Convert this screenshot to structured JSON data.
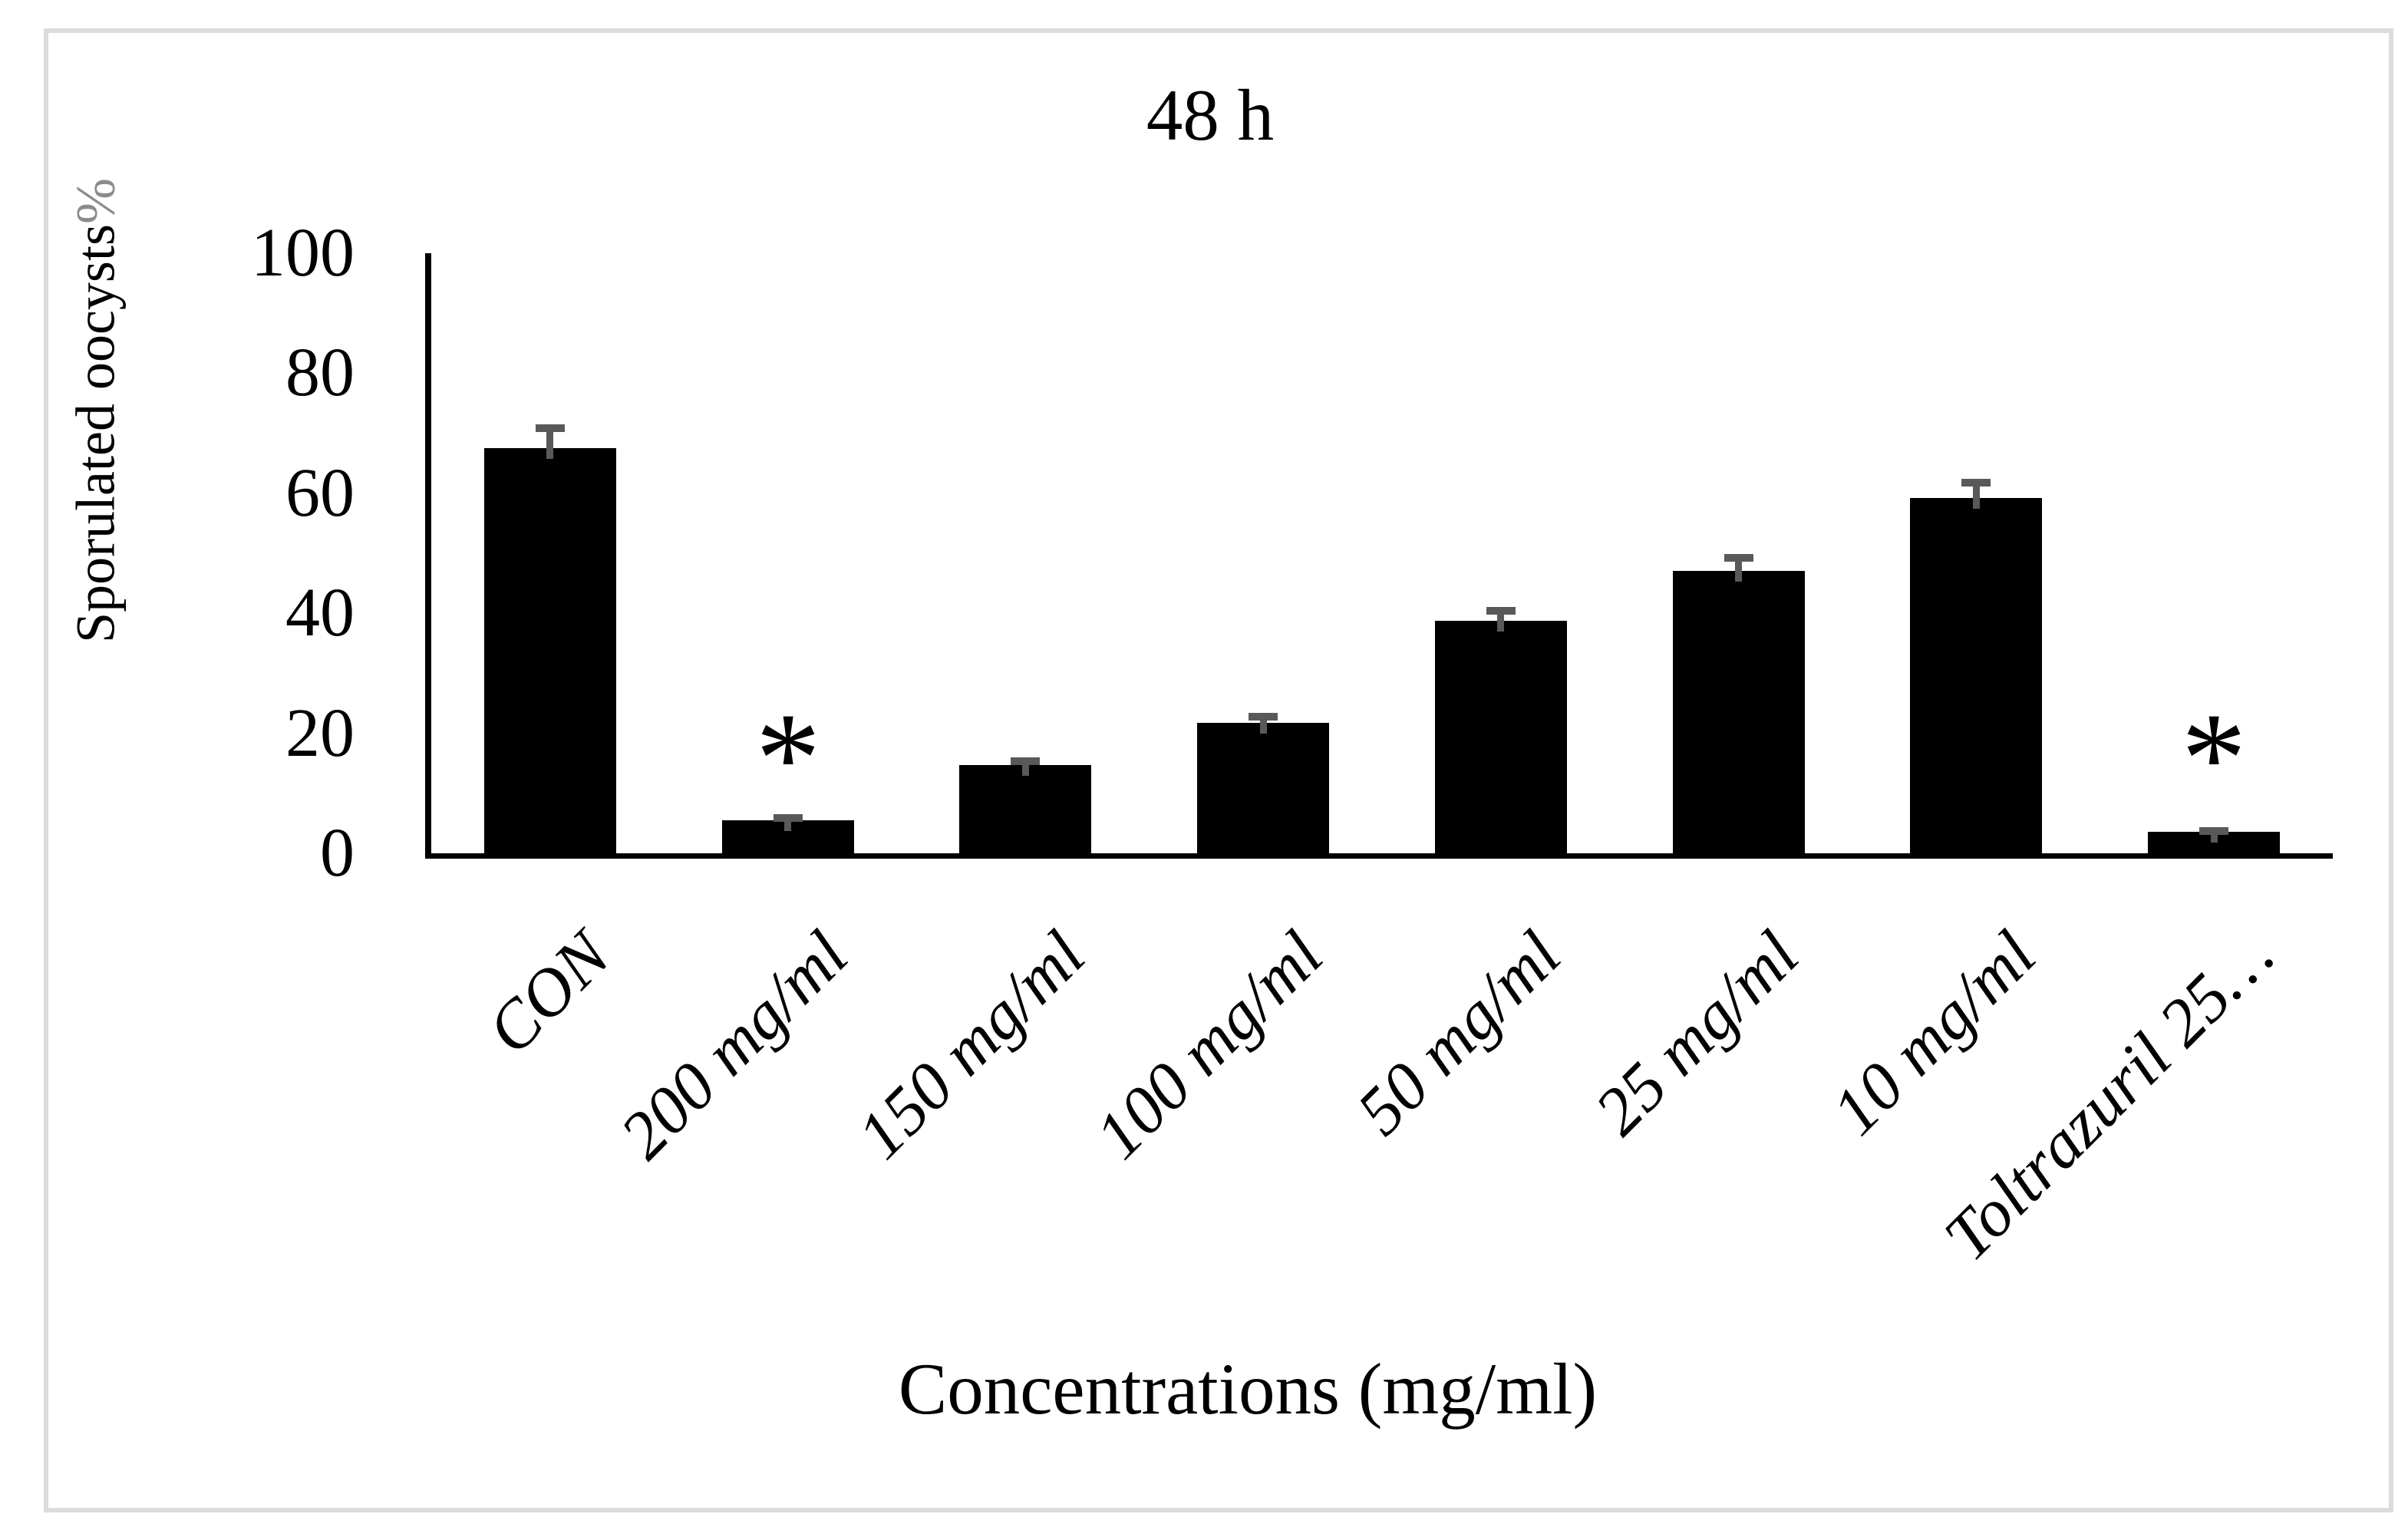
{
  "chart_data": {
    "type": "bar",
    "title": "48 h",
    "xlabel": "Concentrations (mg/ml)",
    "ylabel": "Sporulated oocysts%",
    "ylabel_main": "Sporulated oocysts",
    "ylabel_suffix": "%",
    "categories": [
      "CON",
      "200 mg/ml",
      "150 mg/ml",
      "100 mg/ml",
      "50 mg/ml",
      "25 mg/ml",
      "10 mg/ml",
      "Toltrazuril 25…"
    ],
    "values": [
      67.5,
      5.5,
      14.7,
      21.8,
      38.7,
      47.1,
      59.2,
      3.6
    ],
    "errors": [
      4.0,
      1.0,
      1.3,
      1.6,
      2.3,
      2.8,
      3.2,
      0.7
    ],
    "significance": [
      false,
      true,
      false,
      false,
      false,
      false,
      false,
      true
    ],
    "significance_marker": "*",
    "ylim": [
      0,
      100
    ],
    "yticks": [
      100,
      80,
      60,
      40,
      20,
      0
    ],
    "grid": false,
    "legend": "none",
    "bar_color": "#000000",
    "error_bar_color": "#595959",
    "ylabel_suffix_color": "#8c8c8c",
    "frame_border_color": "#dcdcdc",
    "xtick_rotation_deg": 45
  }
}
